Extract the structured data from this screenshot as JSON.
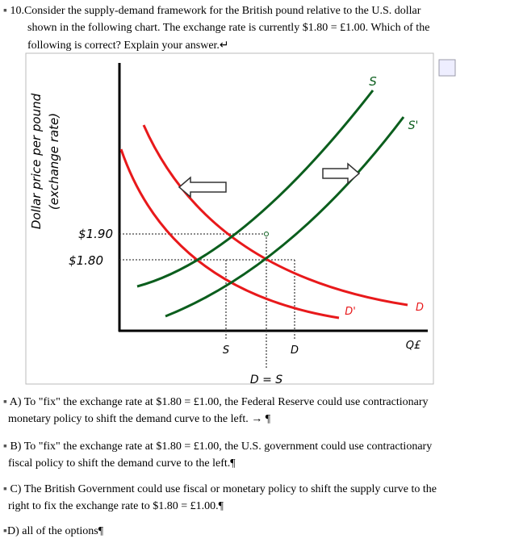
{
  "question": {
    "number": "10.",
    "lines": [
      "Consider the supply-demand framework for the British pound relative to the U.S. dollar",
      "shown in the following chart. The exchange rate is currently $1.80 = £1.00. Which of the",
      "following is correct? Explain your answer.↵"
    ]
  },
  "figure": {
    "y_axis_label": [
      "Dollar price per pound",
      "(exchange rate)"
    ],
    "price_labels": [
      "$1.90",
      "$1.80"
    ],
    "x_axis_label": "Q£",
    "curve_labels": {
      "s": "S",
      "s_shift": "S'",
      "d": "D",
      "d_shift": "D'"
    },
    "bottom_labels": [
      "S",
      "D"
    ],
    "equality_label": "D = S"
  },
  "options": [
    [
      "A) To \"fix\" the exchange rate at $1.80 = £1.00, the Federal Reserve could use contractionary",
      "monetary policy to shift the demand curve to the left.  →  ¶"
    ],
    [
      "B) To \"fix\" the exchange rate at $1.80 = £1.00, the U.S. government could use contractionary",
      "fiscal policy to shift the demand curve to the left.¶"
    ],
    [
      "C) The British Government could use fiscal or monetary policy to shift the supply curve to the",
      "right to fix the exchange rate to $1.80 = £1.00.¶"
    ],
    [
      "D) all of the options¶"
    ]
  ]
}
